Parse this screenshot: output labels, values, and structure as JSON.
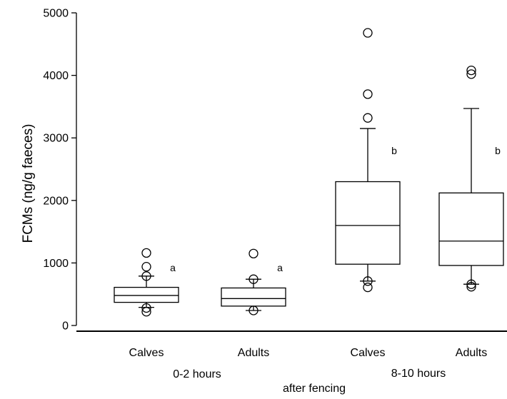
{
  "chart_data": {
    "type": "box",
    "title": "",
    "ylabel": "FCMs (ng/g faeces)",
    "xlabel": "after fencing",
    "ylim": [
      0,
      5000
    ],
    "yticks": [
      0,
      1000,
      2000,
      3000,
      4000,
      5000
    ],
    "grid": false,
    "groups": [
      {
        "label": "0-2 hours",
        "members": [
          0,
          1
        ]
      },
      {
        "label": "8-10 hours",
        "members": [
          2,
          3
        ]
      }
    ],
    "boxes": [
      {
        "category": "Calves",
        "group": "0-2 hours",
        "q1": 370,
        "median": 480,
        "q3": 610,
        "whisker_low": 290,
        "whisker_high": 790,
        "outliers": [
          1160,
          940,
          790,
          280,
          220
        ],
        "sig": "a"
      },
      {
        "category": "Adults",
        "group": "0-2 hours",
        "q1": 310,
        "median": 430,
        "q3": 600,
        "whisker_low": 240,
        "whisker_high": 740,
        "outliers": [
          1150,
          740,
          240
        ],
        "sig": "a"
      },
      {
        "category": "Calves",
        "group": "8-10 hours",
        "q1": 980,
        "median": 1600,
        "q3": 2300,
        "whisker_low": 710,
        "whisker_high": 3150,
        "outliers": [
          4680,
          3700,
          3320,
          710,
          610
        ],
        "sig": "b"
      },
      {
        "category": "Adults",
        "group": "8-10 hours",
        "q1": 960,
        "median": 1350,
        "q3": 2120,
        "whisker_low": 660,
        "whisker_high": 3470,
        "outliers": [
          4080,
          4020,
          660,
          620
        ],
        "sig": "b"
      }
    ]
  }
}
